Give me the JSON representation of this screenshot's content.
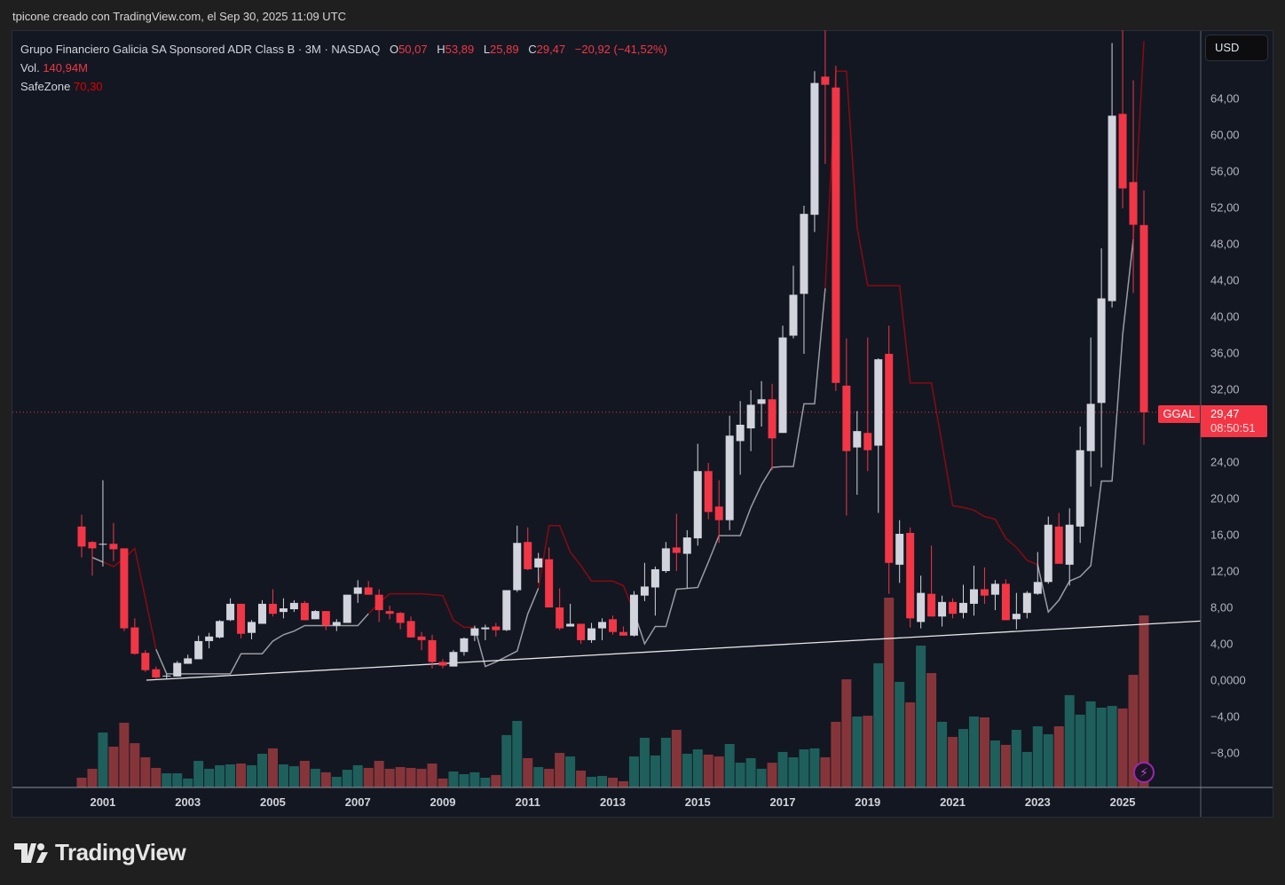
{
  "caption": "tpicone creado con TradingView.com, el Sep 30, 2025 11:09 UTC",
  "legend": {
    "title": "Grupo Financiero Galicia SA Sponsored ADR Class B · 3M · NASDAQ",
    "o_label": "O",
    "o_value": "50,07",
    "h_label": "H",
    "h_value": "53,89",
    "l_label": "L",
    "l_value": "25,89",
    "c_label": "C",
    "c_value": "29,47",
    "change": "−20,92 (−41,52%)",
    "vol_label": "Vol.",
    "vol_value": "140,94M",
    "safezone_label": "SafeZone",
    "safezone_value": "70,30"
  },
  "currency_button": "USD",
  "last_price": {
    "symbol": "GGAL",
    "price": "29,47",
    "countdown": "08:50:51",
    "value": 29.47
  },
  "logo_text": "TradingView",
  "colors": {
    "up": "#d1d4dc",
    "down": "#f23645",
    "vol_up": "#1e5f5c",
    "vol_down": "#853539",
    "short_stop": "#8a0a10",
    "long_stop": "#9a9ca3",
    "trendline": "#e6e6e6",
    "background": "#131722"
  },
  "chart_data": {
    "type": "candlestick",
    "symbol": "GGAL",
    "interval": "3M",
    "first_bar": "2000-Q3",
    "ylim": [
      -11.7,
      71.4
    ],
    "price_axis_labels": [
      {
        "value": 64,
        "label": "64,00"
      },
      {
        "value": 60,
        "label": "60,00"
      },
      {
        "value": 56,
        "label": "56,00"
      },
      {
        "value": 52,
        "label": "52,00"
      },
      {
        "value": 48,
        "label": "48,00"
      },
      {
        "value": 44,
        "label": "44,00"
      },
      {
        "value": 40,
        "label": "40,00"
      },
      {
        "value": 36,
        "label": "36,00"
      },
      {
        "value": 32,
        "label": "32,00"
      },
      {
        "value": 24,
        "label": "24,00"
      },
      {
        "value": 20,
        "label": "20,00"
      },
      {
        "value": 16,
        "label": "16,00"
      },
      {
        "value": 12,
        "label": "12,00"
      },
      {
        "value": 8,
        "label": "8,00"
      },
      {
        "value": 4,
        "label": "4,00"
      },
      {
        "value": 0,
        "label": "0,0000"
      },
      {
        "value": -4,
        "label": "−4,00"
      },
      {
        "value": -8,
        "label": "−8,00"
      }
    ],
    "time_axis_labels": [
      {
        "bar": 2,
        "label": "2001"
      },
      {
        "bar": 10,
        "label": "2003"
      },
      {
        "bar": 18,
        "label": "2005"
      },
      {
        "bar": 26,
        "label": "2007"
      },
      {
        "bar": 34,
        "label": "2009"
      },
      {
        "bar": 42,
        "label": "2011"
      },
      {
        "bar": 50,
        "label": "2013"
      },
      {
        "bar": 58,
        "label": "2015"
      },
      {
        "bar": 66,
        "label": "2017"
      },
      {
        "bar": 74,
        "label": "2019"
      },
      {
        "bar": 82,
        "label": "2021"
      },
      {
        "bar": 90,
        "label": "2023"
      },
      {
        "bar": 98,
        "label": "2025"
      }
    ],
    "ohlc": [
      [
        16.9,
        18.2,
        13.5,
        14.7
      ],
      [
        15.2,
        15.3,
        11.5,
        14.5
      ],
      [
        14.9,
        22.0,
        12.5,
        15.0
      ],
      [
        15.0,
        17.3,
        13.1,
        14.4
      ],
      [
        14.5,
        14.5,
        5.4,
        5.7
      ],
      [
        5.8,
        6.8,
        2.8,
        2.9
      ],
      [
        3.0,
        3.3,
        0.9,
        1.1
      ],
      [
        1.2,
        1.5,
        0.2,
        0.3
      ],
      [
        0.4,
        0.7,
        0.1,
        0.5
      ],
      [
        0.4,
        2.1,
        0.4,
        1.9
      ],
      [
        1.8,
        2.8,
        1.8,
        2.4
      ],
      [
        2.3,
        4.9,
        2.3,
        4.3
      ],
      [
        4.3,
        5.2,
        3.5,
        4.8
      ],
      [
        4.7,
        6.6,
        4.6,
        6.5
      ],
      [
        6.6,
        9.0,
        6.5,
        8.4
      ],
      [
        8.4,
        8.4,
        4.6,
        5.1
      ],
      [
        5.2,
        6.6,
        4.5,
        6.4
      ],
      [
        6.2,
        8.8,
        6.2,
        8.4
      ],
      [
        8.4,
        10.0,
        7.0,
        7.3
      ],
      [
        7.5,
        9.0,
        6.8,
        7.9
      ],
      [
        7.8,
        8.8,
        7.5,
        8.5
      ],
      [
        8.5,
        8.7,
        6.6,
        6.6
      ],
      [
        6.7,
        7.7,
        6.7,
        7.6
      ],
      [
        7.6,
        7.6,
        5.5,
        6.0
      ],
      [
        6.0,
        6.7,
        5.4,
        6.4
      ],
      [
        6.3,
        9.4,
        6.3,
        9.4
      ],
      [
        9.5,
        11.0,
        8.5,
        10.2
      ],
      [
        10.2,
        10.9,
        9.4,
        9.4
      ],
      [
        9.4,
        10.0,
        6.4,
        7.7
      ],
      [
        7.6,
        8.2,
        6.7,
        7.3
      ],
      [
        7.4,
        7.5,
        5.6,
        6.3
      ],
      [
        6.5,
        7.0,
        4.7,
        4.7
      ],
      [
        4.8,
        5.3,
        3.3,
        4.4
      ],
      [
        4.4,
        5.0,
        1.3,
        2.0
      ],
      [
        2.0,
        2.3,
        1.3,
        1.6
      ],
      [
        1.5,
        3.3,
        1.5,
        3.1
      ],
      [
        3.1,
        4.7,
        2.7,
        4.6
      ],
      [
        4.9,
        6.0,
        4.3,
        5.7
      ],
      [
        5.6,
        6.1,
        4.4,
        5.8
      ],
      [
        5.9,
        6.3,
        4.8,
        5.5
      ],
      [
        5.5,
        9.9,
        5.4,
        9.9
      ],
      [
        9.9,
        17.0,
        9.7,
        15.1
      ],
      [
        15.2,
        16.8,
        12.1,
        12.2
      ],
      [
        12.4,
        14.0,
        10.7,
        13.4
      ],
      [
        13.3,
        14.6,
        8.0,
        8.0
      ],
      [
        8.0,
        10.1,
        5.5,
        5.7
      ],
      [
        5.9,
        8.4,
        5.9,
        6.2
      ],
      [
        6.2,
        6.2,
        4.0,
        4.4
      ],
      [
        4.4,
        6.3,
        4.1,
        5.7
      ],
      [
        5.7,
        6.8,
        4.4,
        6.4
      ],
      [
        6.7,
        7.1,
        5.0,
        5.3
      ],
      [
        5.3,
        5.9,
        4.9,
        4.9
      ],
      [
        4.9,
        9.8,
        4.8,
        9.4
      ],
      [
        9.3,
        12.9,
        8.7,
        10.3
      ],
      [
        10.2,
        12.5,
        7.1,
        12.2
      ],
      [
        12.0,
        15.2,
        11.8,
        14.5
      ],
      [
        14.6,
        18.3,
        12.0,
        14.0
      ],
      [
        13.9,
        16.5,
        10.1,
        15.7
      ],
      [
        15.6,
        26.0,
        14.8,
        23.0
      ],
      [
        23.0,
        23.9,
        17.7,
        18.5
      ],
      [
        19.1,
        22.0,
        15.1,
        17.6
      ],
      [
        17.6,
        29.1,
        16.5,
        26.9
      ],
      [
        26.3,
        30.7,
        22.6,
        28.1
      ],
      [
        27.7,
        31.9,
        25.2,
        30.3
      ],
      [
        30.4,
        32.9,
        27.9,
        30.9
      ],
      [
        30.9,
        32.6,
        23.1,
        26.6
      ],
      [
        27.2,
        39.0,
        27.2,
        37.7
      ],
      [
        37.9,
        45.6,
        37.6,
        42.4
      ],
      [
        42.5,
        52.2,
        35.9,
        51.3
      ],
      [
        51.2,
        67.0,
        49.3,
        65.7
      ],
      [
        66.4,
        71.5,
        56.8,
        65.5
      ],
      [
        65.2,
        67.6,
        31.8,
        32.7
      ],
      [
        32.4,
        37.6,
        18.1,
        25.2
      ],
      [
        25.6,
        29.6,
        20.4,
        27.4
      ],
      [
        27.2,
        37.7,
        23.0,
        25.3
      ],
      [
        25.8,
        35.4,
        18.4,
        35.3
      ],
      [
        35.9,
        39.0,
        9.5,
        12.9
      ],
      [
        12.7,
        17.6,
        10.7,
        16.1
      ],
      [
        16.2,
        16.8,
        5.8,
        6.8
      ],
      [
        6.4,
        11.5,
        5.7,
        9.6
      ],
      [
        9.5,
        14.8,
        7.0,
        7.0
      ],
      [
        7.0,
        9.3,
        5.9,
        8.6
      ],
      [
        8.6,
        9.0,
        6.8,
        7.3
      ],
      [
        7.4,
        10.5,
        6.8,
        8.5
      ],
      [
        8.4,
        12.6,
        7.1,
        10.0
      ],
      [
        10.0,
        12.4,
        8.4,
        9.3
      ],
      [
        9.4,
        11.0,
        7.7,
        10.6
      ],
      [
        10.6,
        11.1,
        6.6,
        6.6
      ],
      [
        6.7,
        9.6,
        5.6,
        7.3
      ],
      [
        7.4,
        9.8,
        6.8,
        9.6
      ],
      [
        9.5,
        14.1,
        9.4,
        10.8
      ],
      [
        10.8,
        18.0,
        10.6,
        17.1
      ],
      [
        16.9,
        18.4,
        12.8,
        12.8
      ],
      [
        12.7,
        18.9,
        10.4,
        17.1
      ],
      [
        16.9,
        27.9,
        15.1,
        25.3
      ],
      [
        25.2,
        37.7,
        21.3,
        30.4
      ],
      [
        30.5,
        47.5,
        23.4,
        42.0
      ],
      [
        41.7,
        70.1,
        41.0,
        62.1
      ],
      [
        62.3,
        71.5,
        51.9,
        54.1
      ],
      [
        54.8,
        66.0,
        42.6,
        50.1
      ],
      [
        50.07,
        53.89,
        25.89,
        29.47
      ]
    ],
    "volume_millions": [
      8.0,
      15.3,
      45.0,
      33.4,
      53.0,
      36.3,
      24.7,
      16.0,
      11.6,
      11.6,
      7.3,
      21.8,
      15.3,
      18.2,
      18.9,
      19.6,
      18.2,
      27.6,
      32.0,
      18.9,
      17.4,
      21.8,
      15.3,
      12.4,
      8.7,
      14.5,
      18.2,
      16.0,
      21.8,
      15.3,
      16.7,
      16.0,
      15.3,
      19.6,
      7.3,
      13.1,
      10.9,
      12.4,
      8.0,
      10.2,
      42.9,
      54.5,
      24.0,
      16.7,
      15.3,
      28.3,
      25.4,
      13.8,
      8.7,
      9.4,
      8.0,
      5.1,
      25.4,
      40.7,
      26.2,
      40.7,
      47.2,
      27.6,
      31.2,
      26.9,
      25.4,
      35.6,
      20.3,
      24.0,
      15.3,
      20.3,
      29.1,
      24.7,
      31.2,
      32.0,
      24.7,
      53.8,
      88.6,
      58.1,
      58.8,
      101.7,
      155.5,
      86.5,
      69.7,
      116.2,
      93.7,
      53.8,
      41.4,
      47.9,
      58.1,
      57.4,
      38.5,
      34.9,
      47.2,
      29.1,
      50.1,
      43.6,
      50.1,
      75.6,
      59.6,
      70.5,
      65.4,
      66.8,
      64.7,
      92.3,
      140.94
    ],
    "safezone_short_stop": [
      null,
      null,
      null,
      12.5,
      13.4,
      14.5,
      9.0,
      3.4,
      null,
      null,
      null,
      null,
      null,
      null,
      null,
      null,
      null,
      null,
      null,
      null,
      null,
      null,
      null,
      null,
      null,
      null,
      null,
      null,
      8.5,
      9.5,
      9.5,
      9.5,
      9.5,
      9.4,
      9.3,
      6.6,
      5.8,
      5.8,
      null,
      null,
      null,
      null,
      null,
      null,
      17.0,
      17.0,
      14.1,
      12.6,
      10.9,
      10.9,
      10.9,
      10.4,
      7.5,
      null,
      null,
      null,
      null,
      null,
      null,
      null,
      null,
      null,
      null,
      null,
      null,
      null,
      null,
      null,
      null,
      null,
      null,
      67.0,
      67.0,
      49.8,
      43.4,
      43.4,
      43.4,
      43.4,
      32.7,
      32.7,
      32.7,
      26.0,
      19.2,
      19.0,
      18.7,
      18.0,
      17.7,
      15.6,
      14.6,
      13.2,
      12.7,
      null,
      null,
      null,
      null,
      null,
      null,
      null,
      null,
      null,
      70.3
    ],
    "safezone_long_stop": [
      null,
      13.5,
      13.0,
      null,
      null,
      null,
      null,
      null,
      0.7,
      0.7,
      0.7,
      0.7,
      0.7,
      0.7,
      0.7,
      2.9,
      2.9,
      2.9,
      4.3,
      5.0,
      5.4,
      6.0,
      6.0,
      6.0,
      6.0,
      6.0,
      6.0,
      7.3,
      null,
      null,
      null,
      null,
      null,
      null,
      null,
      null,
      null,
      null,
      1.5,
      2.0,
      2.6,
      3.2,
      7.3,
      10.1,
      null,
      null,
      null,
      null,
      null,
      null,
      null,
      null,
      null,
      4.0,
      5.9,
      5.9,
      10.0,
      10.1,
      10.2,
      13.0,
      15.9,
      15.9,
      15.9,
      19.0,
      21.5,
      23.4,
      23.5,
      23.5,
      30.4,
      30.4,
      43.1,
      null,
      null,
      null,
      null,
      null,
      null,
      null,
      null,
      null,
      null,
      null,
      null,
      null,
      null,
      null,
      null,
      null,
      null,
      null,
      null,
      7.5,
      8.8,
      10.9,
      11.4,
      12.6,
      21.9,
      21.9,
      38.0,
      48.5,
      null
    ],
    "trendline": {
      "from": {
        "bar": 6.1,
        "price": 0.0
      },
      "to": {
        "bar": 105.3,
        "price": 6.5
      }
    }
  }
}
